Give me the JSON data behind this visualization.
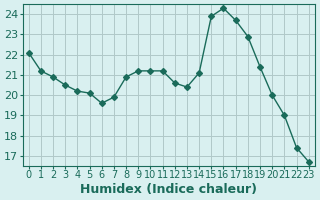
{
  "x": [
    0,
    1,
    2,
    3,
    4,
    5,
    6,
    7,
    8,
    9,
    10,
    11,
    12,
    13,
    14,
    15,
    16,
    17,
    18,
    19,
    20,
    21,
    22,
    23
  ],
  "y": [
    22.1,
    21.2,
    20.9,
    20.5,
    20.2,
    20.1,
    19.6,
    19.9,
    20.9,
    21.2,
    21.2,
    21.2,
    20.6,
    20.4,
    21.1,
    23.9,
    24.3,
    23.7,
    22.9,
    21.4,
    20.0,
    19.0,
    17.4,
    16.7
  ],
  "line_color": "#1a6b5a",
  "marker": "D",
  "marker_size": 3,
  "bg_color": "#d9f0f0",
  "grid_color": "#b0c8c8",
  "tick_color": "#1a6b5a",
  "xlabel": "Humidex (Indice chaleur)",
  "ylabel_ticks": [
    17,
    18,
    19,
    20,
    21,
    22,
    23,
    24
  ],
  "xtick_labels": [
    "0",
    "1",
    "2",
    "3",
    "4",
    "5",
    "6",
    "7",
    "8",
    "9",
    "10",
    "11",
    "12",
    "13",
    "14",
    "15",
    "16",
    "17",
    "18",
    "19",
    "20",
    "21",
    "22",
    "23"
  ],
  "xlim": [
    -0.5,
    23.5
  ],
  "ylim": [
    16.5,
    24.5
  ],
  "font_color": "#1a6b5a",
  "font_size": 8,
  "label_font_size": 9
}
